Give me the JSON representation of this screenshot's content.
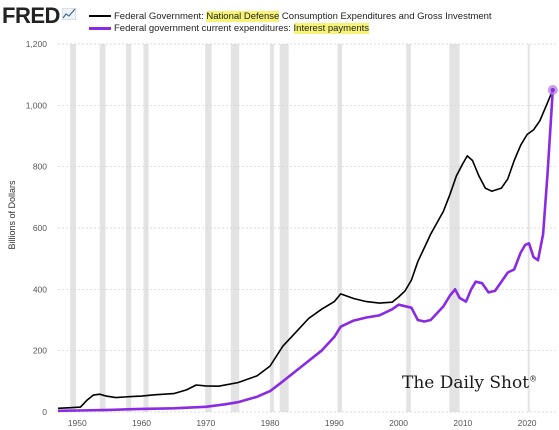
{
  "brand": {
    "logo_text": "FRED",
    "logo_icon": "line-chart-icon"
  },
  "legend": [
    {
      "prefix": "Federal Government: ",
      "highlight": "National Defense",
      "suffix": " Consumption Expenditures and Gross Investment",
      "color": "#000000"
    },
    {
      "prefix": "Federal government current expenditures: ",
      "highlight": "Interest payments",
      "suffix": "",
      "color": "#8a2be2"
    }
  ],
  "watermark": {
    "text": "The Daily Shot",
    "mark": "®"
  },
  "chart_data": {
    "type": "line",
    "xlabel": "",
    "ylabel": "Billions of Dollars",
    "xlim": [
      1947,
      2024.5
    ],
    "ylim": [
      0,
      1200
    ],
    "yticks": [
      0,
      200,
      400,
      600,
      800,
      1000,
      1200
    ],
    "ytick_labels": [
      "0",
      "200",
      "400",
      "600",
      "800",
      "1,000",
      "1,200"
    ],
    "xticks": [
      1950,
      1960,
      1970,
      1980,
      1990,
      2000,
      2010,
      2020
    ],
    "xtick_labels": [
      "1950",
      "1960",
      "1970",
      "1980",
      "1990",
      "2000",
      "2010",
      "2020"
    ],
    "grid": true,
    "recessions": [
      [
        1948.9,
        1949.8
      ],
      [
        1953.5,
        1954.4
      ],
      [
        1957.6,
        1958.4
      ],
      [
        1960.3,
        1961.1
      ],
      [
        1969.9,
        1970.9
      ],
      [
        1973.9,
        1975.2
      ],
      [
        1980.0,
        1980.6
      ],
      [
        1981.5,
        1982.9
      ],
      [
        1990.5,
        1991.2
      ],
      [
        2001.2,
        2001.9
      ],
      [
        2007.9,
        2009.5
      ],
      [
        2020.1,
        2020.4
      ]
    ],
    "series": [
      {
        "name": "Federal Government: National Defense Consumption Expenditures and Gross Investment",
        "color": "#000000",
        "x": [
          1947,
          1949,
          1950.5,
          1951.5,
          1952.5,
          1953.5,
          1954.5,
          1956,
          1958,
          1960,
          1962,
          1965,
          1967,
          1968.5,
          1970,
          1972,
          1975,
          1978,
          1980,
          1982,
          1984,
          1986,
          1988,
          1990,
          1991,
          1993,
          1995,
          1997,
          1999,
          2000,
          2001,
          2002,
          2003,
          2005,
          2007,
          2008,
          2009,
          2010,
          2010.7,
          2011.5,
          2012.5,
          2013.5,
          2014.5,
          2016,
          2017,
          2018,
          2019,
          2020,
          2021,
          2022,
          2023,
          2024
        ],
        "values": [
          12,
          14,
          16,
          38,
          55,
          58,
          52,
          47,
          50,
          52,
          56,
          60,
          72,
          88,
          85,
          84,
          96,
          118,
          150,
          215,
          260,
          305,
          335,
          360,
          385,
          370,
          360,
          355,
          358,
          375,
          395,
          430,
          490,
          580,
          655,
          710,
          770,
          810,
          835,
          820,
          770,
          730,
          720,
          730,
          760,
          820,
          870,
          905,
          920,
          950,
          1000,
          1050
        ]
      },
      {
        "name": "Federal government current expenditures: Interest payments",
        "color": "#8a2be2",
        "x": [
          1947,
          1950,
          1955,
          1960,
          1965,
          1970,
          1973,
          1975,
          1978,
          1980,
          1982,
          1985,
          1988,
          1990,
          1991,
          1993,
          1995,
          1997,
          1999,
          2000,
          2002,
          2003,
          2004,
          2005,
          2007,
          2008,
          2008.8,
          2009.5,
          2010.5,
          2011.3,
          2012,
          2013,
          2014,
          2015,
          2016,
          2017,
          2018,
          2019,
          2019.7,
          2020.3,
          2021,
          2021.7,
          2022.5,
          2023.2,
          2024
        ],
        "values": [
          4,
          5,
          7,
          10,
          12,
          17,
          25,
          32,
          50,
          68,
          100,
          150,
          200,
          245,
          278,
          298,
          308,
          315,
          335,
          350,
          340,
          300,
          295,
          300,
          345,
          380,
          400,
          372,
          360,
          400,
          425,
          420,
          390,
          395,
          425,
          455,
          465,
          520,
          545,
          550,
          505,
          495,
          580,
          780,
          1050
        ]
      }
    ]
  }
}
